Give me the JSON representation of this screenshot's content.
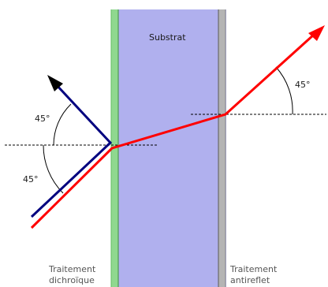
{
  "labels": {
    "substrate": "Substrat",
    "coating_left_line1": "Traitement",
    "coating_left_line2": "dichroïque",
    "coating_right_line1": "Traitement",
    "coating_right_line2": "antireflet",
    "angle_upper_left": "45°",
    "angle_lower_left": "45°",
    "angle_right": "45°"
  },
  "colors": {
    "substrate_fill": "#bcbcf4",
    "dichroic_coating": "#8fd88f",
    "antireflective_coating": "#b4b4b4",
    "transmitted_beam": "#ff0000",
    "reflected_beam": "#00007f",
    "normal_line": "#000000"
  },
  "icons": {
    "reflected_arrowhead": "arrowhead",
    "transmitted_arrowhead": "arrowhead"
  }
}
